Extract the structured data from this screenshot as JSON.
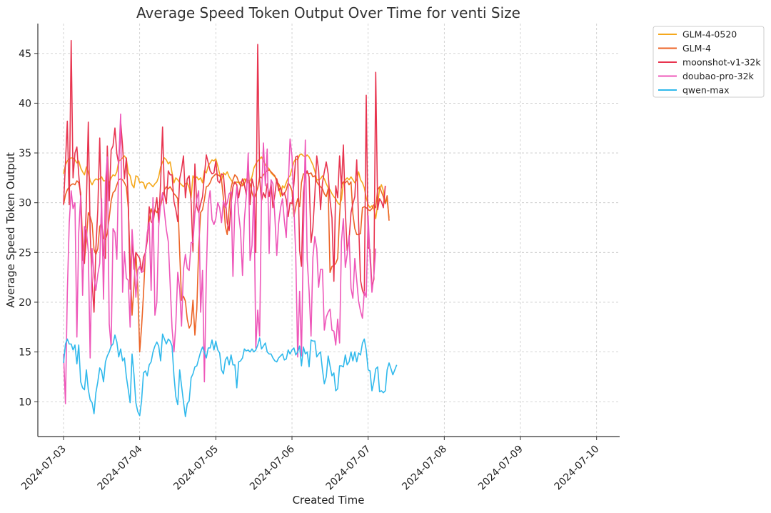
{
  "chart_data": {
    "type": "line",
    "title": "Average Speed Token Output Over Time for venti Size",
    "xlabel": "Created Time",
    "ylabel": "Average Speed Token Output",
    "x_start": "2024-07-03",
    "x_step_days": 0.025,
    "x_ticks": [
      "2024-07-03",
      "2024-07-04",
      "2024-07-05",
      "2024-07-06",
      "2024-07-07",
      "2024-07-08",
      "2024-07-09",
      "2024-07-10"
    ],
    "ylim": [
      6.5,
      48
    ],
    "y_ticks": [
      10,
      15,
      20,
      25,
      30,
      35,
      40,
      45
    ],
    "grid": true,
    "legend_position": "outside-top-right",
    "series": [
      {
        "name": "GLM-4-0520",
        "color": "#F5A81C",
        "values": [
          32.9,
          33.8,
          34.2,
          34.4,
          34.5,
          34.5,
          34.3,
          34.0,
          34.2,
          33.5,
          33.1,
          32.8,
          33.6,
          33.0,
          32.2,
          31.8,
          32.2,
          32.4,
          32.3,
          32.4,
          32.6,
          32.2,
          32.2,
          32.3,
          32.0,
          32.5,
          32.8,
          32.7,
          33.1,
          34.2,
          34.3,
          34.5,
          34.7,
          34.4,
          33.0,
          32.7,
          31.8,
          31.5,
          32.7,
          32.6,
          32.0,
          32.1,
          32.0,
          31.4,
          31.9,
          32.0,
          31.8,
          31.6,
          31.9,
          32.1,
          32.6,
          33.6,
          34.1,
          34.5,
          34.3,
          33.9,
          34.1,
          33.0,
          32.0,
          32.5,
          32.3,
          32.0,
          31.8,
          31.6,
          31.9,
          32.0,
          31.5,
          30.5,
          32.7,
          32.4,
          32.6,
          32.3,
          32.5,
          32.0,
          33.2,
          33.0,
          33.7,
          34.0,
          34.3,
          34.2,
          34.4,
          33.7,
          32.9,
          32.3,
          33.0,
          32.8,
          33.1,
          32.6,
          32.3,
          32.0,
          31.9,
          32.1,
          32.0,
          32.1,
          31.8,
          32.4,
          32.2,
          32.0,
          32.2,
          32.6,
          33.5,
          33.9,
          34.2,
          34.4,
          34.6,
          34.2,
          33.8,
          33.6,
          33.4,
          33.0,
          32.8,
          32.6,
          32.4,
          31.7,
          30.6,
          31.7,
          31.5,
          32.0,
          32.5,
          32.7,
          33.4,
          34.1,
          34.4,
          34.3,
          34.8,
          34.9,
          34.7,
          34.6,
          34.8,
          34.6,
          34.2,
          33.8,
          33.2,
          32.3,
          32.3,
          32.4,
          32.7,
          32.4,
          31.9,
          31.5,
          31.3,
          30.9,
          30.6,
          30.4,
          30.0,
          29.8,
          30.3,
          32.0,
          32.3,
          32.5,
          32.3,
          32.6,
          32.3,
          32.0,
          32.3,
          33.1,
          32.3,
          32.0,
          31.5,
          30.5,
          29.8,
          29.5,
          29.7,
          29.4,
          28.4,
          29.8,
          31.4,
          31.8,
          31.2,
          30.0,
          30.3,
          28.5
        ]
      },
      {
        "name": "GLM-4",
        "color": "#EC6325",
        "values": [
          29.8,
          30.8,
          31.3,
          31.6,
          31.8,
          31.9,
          31.8,
          32.2,
          32.0,
          31.0,
          26.0,
          24.2,
          26.3,
          29.0,
          28.6,
          27.9,
          25.3,
          24.8,
          25.4,
          27.6,
          28.0,
          26.4,
          26.3,
          26.9,
          28.5,
          30.2,
          31.0,
          31.2,
          31.8,
          32.3,
          32.4,
          32.3,
          32.0,
          31.6,
          29.5,
          24.0,
          18.7,
          21.7,
          25.0,
          21.5,
          15.0,
          17.5,
          20.8,
          25.0,
          26.5,
          28.2,
          29.4,
          28.8,
          29.3,
          29.0,
          29.4,
          29.7,
          30.5,
          31.3,
          31.6,
          31.4,
          31.6,
          31.3,
          30.9,
          30.7,
          30.4,
          25.0,
          20.2,
          20.6,
          20.1,
          18.3,
          17.4,
          17.8,
          20.2,
          16.7,
          19.3,
          25.5,
          29.0,
          29.3,
          30.3,
          31.6,
          31.7,
          32.0,
          32.5,
          32.7,
          32.9,
          32.8,
          32.7,
          32.3,
          30.4,
          27.6,
          26.8,
          29.4,
          31.5,
          32.3,
          32.8,
          32.6,
          32.1,
          31.7,
          31.7,
          31.9,
          32.4,
          32.2,
          31.9,
          31.0,
          30.4,
          30.9,
          31.5,
          32.6,
          32.5,
          32.8,
          33.0,
          33.2,
          33.3,
          33.1,
          32.9,
          32.7,
          32.1,
          31.9,
          31.5,
          30.8,
          30.9,
          31.3,
          32.0,
          31.7,
          31.2,
          28.6,
          29.6,
          30.4,
          29.6,
          32.0,
          32.9,
          32.9,
          33.0,
          32.9,
          33.0,
          32.6,
          32.7,
          32.1,
          31.8,
          31.6,
          31.4,
          30.9,
          30.6,
          31.4,
          23.0,
          23.6,
          23.7,
          23.9,
          24.4,
          28.7,
          31.8,
          32.1,
          32.0,
          32.2,
          31.8,
          32.1,
          28.9,
          27.4,
          26.8,
          26.8,
          26.9,
          29.5,
          29.6,
          29.5,
          29.3,
          29.2,
          29.4,
          29.8,
          29.5,
          31.3,
          31.6,
          31.1,
          30.6,
          29.9,
          30.7,
          28.2
        ]
      },
      {
        "name": "moonshot-v1-32k",
        "color": "#E8344F",
        "values": [
          29.8,
          34.0,
          38.2,
          29.8,
          46.3,
          32.5,
          35.0,
          35.6,
          32.8,
          30.5,
          24.3,
          23.9,
          30.0,
          38.1,
          27.0,
          22.0,
          19.0,
          25.4,
          29.3,
          36.5,
          28.5,
          24.7,
          24.4,
          35.7,
          30.2,
          35.3,
          35.7,
          37.5,
          34.9,
          33.9,
          38.2,
          35.7,
          32.4,
          34.5,
          30.2,
          21.3,
          26.2,
          23.3,
          25.0,
          24.7,
          24.4,
          23.0,
          24.5,
          25.0,
          26.2,
          29.6,
          28.1,
          27.9,
          29.3,
          30.5,
          28.0,
          32.0,
          37.6,
          30.9,
          29.9,
          33.2,
          32.8,
          32.8,
          30.1,
          29.3,
          28.1,
          32.4,
          33.3,
          34.7,
          30.5,
          32.4,
          32.7,
          30.1,
          25.1,
          33.9,
          29.6,
          29.0,
          29.9,
          30.6,
          32.7,
          34.8,
          34.0,
          33.2,
          32.9,
          33.0,
          34.2,
          32.2,
          32.0,
          32.9,
          32.8,
          30.4,
          28.0,
          27.2,
          29.9,
          31.6,
          32.1,
          31.8,
          30.5,
          31.7,
          32.4,
          31.8,
          30.8,
          34.2,
          29.8,
          32.4,
          31.6,
          25.0,
          45.9,
          32.4,
          30.2,
          31.0,
          30.5,
          31.9,
          30.6,
          32.0,
          29.5,
          30.8,
          32.4,
          31.2,
          31.5,
          30.7,
          31.0,
          30.3,
          28.6,
          30.0,
          29.9,
          31.9,
          34.6,
          34.7,
          25.2,
          23.6,
          31.0,
          32.9,
          33.2,
          32.6,
          26.0,
          27.5,
          30.8,
          34.7,
          33.3,
          29.3,
          32.0,
          33.1,
          34.1,
          32.9,
          30.2,
          28.5,
          22.1,
          31.7,
          30.5,
          34.7,
          31.5,
          35.8,
          29.2,
          25.2,
          26.3,
          29.0,
          29.9,
          30.6,
          34.3,
          28.1,
          22.2,
          21.2,
          20.7,
          40.8,
          25.5,
          25.3,
          21.5,
          22.3,
          43.1,
          29.3,
          30.4,
          30.1,
          29.5,
          31.7
        ]
      },
      {
        "name": "doubao-pro-32k",
        "color": "#EE57B9",
        "values": [
          14.8,
          9.8,
          21.0,
          28.0,
          31.2,
          29.4,
          30.0,
          16.5,
          27.0,
          30.7,
          20.7,
          27.6,
          27.2,
          25.1,
          14.4,
          25.4,
          22.5,
          21.2,
          22.8,
          23.9,
          30.4,
          20.3,
          32.0,
          34.6,
          17.8,
          15.5,
          27.4,
          27.0,
          24.3,
          34.1,
          38.9,
          21.0,
          25.1,
          22.4,
          22.2,
          17.5,
          27.3,
          24.3,
          20.5,
          23.2,
          23.6,
          23.0,
          23.1,
          25.0,
          27.0,
          28.0,
          21.2,
          30.5,
          18.7,
          20.0,
          27.6,
          29.9,
          31.0,
          29.1,
          27.3,
          26.1,
          21.9,
          17.4,
          15.0,
          17.8,
          23.0,
          21.3,
          17.6,
          23.3,
          24.8,
          23.4,
          23.2,
          26.0,
          26.0,
          28.9,
          30.4,
          31.2,
          19.0,
          23.2,
          12.0,
          22.7,
          29.9,
          31.2,
          28.3,
          27.8,
          28.4,
          30.0,
          29.5,
          28.0,
          30.2,
          29.5,
          30.0,
          30.9,
          31.1,
          22.6,
          29.7,
          31.6,
          28.9,
          27.1,
          22.7,
          28.3,
          30.7,
          35.0,
          24.2,
          25.7,
          31.5,
          15.4,
          19.2,
          16.6,
          30.5,
          36.0,
          31.7,
          35.4,
          24.9,
          32.3,
          31.9,
          28.6,
          24.7,
          27.9,
          29.5,
          30.4,
          28.2,
          26.5,
          31.6,
          36.4,
          34.7,
          29.6,
          24.7,
          14.5,
          21.1,
          14.6,
          26.7,
          36.3,
          24.3,
          21.1,
          16.6,
          24.5,
          26.6,
          25.4,
          21.5,
          23.3,
          23.3,
          17.2,
          18.5,
          19.0,
          19.3,
          17.2,
          17.1,
          15.7,
          18.3,
          15.9,
          26.1,
          28.4,
          23.5,
          24.8,
          26.7,
          21.4,
          20.4,
          24.4,
          22.2,
          20.1,
          19.1,
          18.4,
          21.1,
          20.5,
          28.7,
          24.4,
          21.0,
          22.7,
          25.4
        ]
      },
      {
        "name": "qwen-max",
        "color": "#30B9EC",
        "values": [
          13.9,
          15.8,
          16.3,
          15.8,
          15.8,
          15.2,
          15.7,
          13.8,
          15.7,
          12.0,
          11.4,
          11.2,
          13.2,
          11.2,
          10.2,
          9.9,
          8.8,
          10.9,
          12.0,
          13.4,
          13.1,
          12.0,
          14.0,
          14.6,
          15.0,
          15.6,
          15.8,
          16.7,
          16.0,
          14.5,
          15.3,
          14.1,
          14.4,
          12.5,
          11.2,
          9.9,
          14.8,
          12.7,
          9.9,
          9.0,
          8.6,
          10.1,
          12.9,
          13.1,
          12.6,
          13.7,
          14.0,
          15.0,
          15.6,
          16.0,
          15.6,
          14.1,
          16.8,
          16.3,
          15.8,
          16.3,
          16.1,
          15.6,
          12.6,
          10.5,
          9.7,
          13.2,
          11.6,
          10.0,
          8.5,
          9.8,
          10.1,
          12.4,
          12.8,
          13.5,
          13.6,
          14.3,
          15.0,
          15.5,
          15.0,
          14.4,
          15.4,
          15.4,
          16.2,
          15.2,
          16.1,
          15.2,
          14.9,
          13.2,
          12.8,
          14.2,
          14.5,
          13.7,
          14.7,
          13.7,
          13.7,
          11.4,
          14.0,
          14.1,
          14.4,
          15.3,
          15.1,
          15.2,
          15.0,
          15.3,
          15.0,
          15.2,
          15.7,
          16.4,
          15.3,
          15.6,
          15.9,
          15.0,
          14.8,
          14.8,
          14.4,
          14.1,
          14.0,
          14.4,
          14.6,
          14.8,
          14.2,
          14.3,
          15.2,
          14.8,
          15.2,
          15.4,
          14.7,
          15.0,
          15.6,
          13.6,
          15.5,
          14.8,
          15.0,
          13.5,
          16.2,
          16.1,
          16.1,
          14.5,
          14.8,
          15.0,
          13.2,
          11.8,
          12.5,
          14.6,
          13.6,
          12.6,
          12.9,
          11.1,
          11.3,
          13.6,
          13.6,
          13.5,
          14.7,
          13.7,
          14.0,
          15.0,
          14.1,
          15.0,
          14.0,
          14.9,
          14.7,
          15.9,
          16.3,
          15.2,
          13.2,
          13.1,
          11.1,
          12.0,
          13.3,
          13.5,
          11.0,
          11.1,
          10.9,
          11.1,
          13.2,
          13.9,
          13.3,
          12.7,
          13.2,
          13.7
        ]
      }
    ]
  }
}
